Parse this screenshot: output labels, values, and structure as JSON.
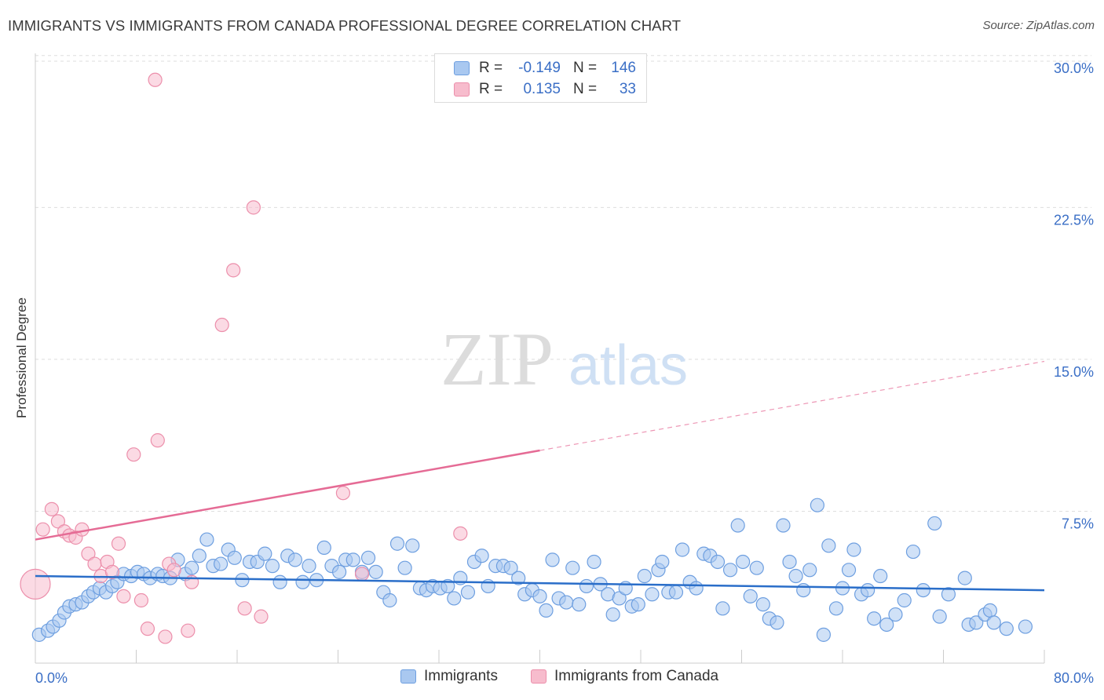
{
  "title": "IMMIGRANTS VS IMMIGRANTS FROM CANADA PROFESSIONAL DEGREE CORRELATION CHART",
  "source": "Source: ZipAtlas.com",
  "watermark": {
    "zip": "ZIP",
    "atlas": "atlas"
  },
  "legend": {
    "r_label": "R =",
    "n_label": "N =",
    "rows": [
      {
        "r": "-0.149",
        "n": "146"
      },
      {
        "r": "0.135",
        "n": "33"
      }
    ]
  },
  "chart_data": {
    "type": "scatter",
    "title": "IMMIGRANTS VS IMMIGRANTS FROM CANADA PROFESSIONAL DEGREE CORRELATION CHART",
    "xlabel": "",
    "ylabel": "Professional Degree",
    "xlim": [
      0,
      80
    ],
    "ylim": [
      0,
      31
    ],
    "x_tick_labels": [
      "0.0%",
      "80.0%"
    ],
    "y_ticks": [
      7.5,
      15.0,
      22.5,
      30.0
    ],
    "y_tick_labels": [
      "7.5%",
      "15.0%",
      "22.5%",
      "30.0%"
    ],
    "grid": "horizontal dashed",
    "legend_placement": "top-center",
    "colors": {
      "immigrants_fill": "#a9c8f0",
      "immigrants_edge": "#6e9fe0",
      "immigrants_line": "#2a6ec9",
      "canada_fill": "#f7bccd",
      "canada_edge": "#ec8fab",
      "canada_line": "#e56b95",
      "tick_label": "#3b6fc6"
    },
    "series": [
      {
        "name": "Immigrants",
        "r": -0.149,
        "n": 146,
        "trend": {
          "x": [
            0,
            80
          ],
          "y": [
            4.3,
            3.6
          ]
        },
        "points": [
          [
            0.3,
            1.4
          ],
          [
            1.0,
            1.6
          ],
          [
            1.4,
            1.8
          ],
          [
            1.9,
            2.1
          ],
          [
            2.3,
            2.5
          ],
          [
            2.7,
            2.8
          ],
          [
            3.2,
            2.9
          ],
          [
            3.7,
            3.0
          ],
          [
            4.2,
            3.3
          ],
          [
            4.6,
            3.5
          ],
          [
            5.1,
            3.7
          ],
          [
            5.6,
            3.5
          ],
          [
            6.1,
            3.8
          ],
          [
            6.5,
            4.0
          ],
          [
            7.0,
            4.4
          ],
          [
            7.6,
            4.3
          ],
          [
            8.1,
            4.5
          ],
          [
            8.6,
            4.4
          ],
          [
            9.1,
            4.2
          ],
          [
            9.7,
            4.4
          ],
          [
            10.1,
            4.3
          ],
          [
            10.7,
            4.2
          ],
          [
            11.3,
            5.1
          ],
          [
            11.9,
            4.4
          ],
          [
            12.4,
            4.7
          ],
          [
            13.0,
            5.3
          ],
          [
            13.6,
            6.1
          ],
          [
            14.1,
            4.8
          ],
          [
            14.7,
            4.9
          ],
          [
            15.3,
            5.6
          ],
          [
            15.8,
            5.2
          ],
          [
            16.4,
            4.1
          ],
          [
            17.0,
            5.0
          ],
          [
            17.6,
            5.0
          ],
          [
            18.2,
            5.4
          ],
          [
            18.8,
            4.8
          ],
          [
            19.4,
            4.0
          ],
          [
            20.0,
            5.3
          ],
          [
            20.6,
            5.1
          ],
          [
            21.2,
            4.0
          ],
          [
            21.7,
            4.8
          ],
          [
            22.3,
            4.1
          ],
          [
            22.9,
            5.7
          ],
          [
            23.5,
            4.8
          ],
          [
            24.1,
            4.5
          ],
          [
            24.6,
            5.1
          ],
          [
            25.2,
            5.1
          ],
          [
            25.9,
            4.5
          ],
          [
            26.4,
            5.2
          ],
          [
            27.0,
            4.5
          ],
          [
            27.6,
            3.5
          ],
          [
            28.1,
            3.1
          ],
          [
            28.7,
            5.9
          ],
          [
            29.3,
            4.7
          ],
          [
            29.9,
            5.8
          ],
          [
            30.5,
            3.7
          ],
          [
            31.0,
            3.6
          ],
          [
            31.5,
            3.8
          ],
          [
            32.1,
            3.7
          ],
          [
            32.7,
            3.8
          ],
          [
            33.2,
            3.2
          ],
          [
            33.7,
            4.2
          ],
          [
            34.3,
            3.5
          ],
          [
            34.8,
            5.0
          ],
          [
            35.4,
            5.3
          ],
          [
            35.9,
            3.8
          ],
          [
            36.5,
            4.8
          ],
          [
            37.1,
            4.8
          ],
          [
            37.7,
            4.7
          ],
          [
            38.3,
            4.2
          ],
          [
            38.8,
            3.4
          ],
          [
            39.4,
            3.6
          ],
          [
            40.0,
            3.3
          ],
          [
            40.5,
            2.6
          ],
          [
            41.0,
            5.1
          ],
          [
            41.5,
            3.2
          ],
          [
            42.1,
            3.0
          ],
          [
            42.6,
            4.7
          ],
          [
            43.1,
            2.9
          ],
          [
            43.7,
            3.8
          ],
          [
            44.3,
            5.0
          ],
          [
            44.8,
            3.9
          ],
          [
            45.4,
            3.4
          ],
          [
            45.8,
            2.4
          ],
          [
            46.3,
            3.2
          ],
          [
            46.8,
            3.7
          ],
          [
            47.3,
            2.8
          ],
          [
            47.8,
            2.9
          ],
          [
            48.3,
            4.3
          ],
          [
            48.9,
            3.4
          ],
          [
            49.4,
            4.6
          ],
          [
            49.7,
            5.0
          ],
          [
            50.2,
            3.5
          ],
          [
            50.8,
            3.5
          ],
          [
            51.3,
            5.6
          ],
          [
            51.9,
            4.0
          ],
          [
            52.4,
            3.7
          ],
          [
            53.0,
            5.4
          ],
          [
            53.5,
            5.3
          ],
          [
            54.1,
            5.0
          ],
          [
            54.5,
            2.7
          ],
          [
            55.1,
            4.6
          ],
          [
            55.7,
            6.8
          ],
          [
            56.1,
            5.0
          ],
          [
            56.7,
            3.3
          ],
          [
            57.2,
            4.7
          ],
          [
            57.7,
            2.9
          ],
          [
            58.2,
            2.2
          ],
          [
            58.8,
            2.0
          ],
          [
            59.3,
            6.8
          ],
          [
            59.8,
            5.0
          ],
          [
            60.3,
            4.3
          ],
          [
            60.9,
            3.6
          ],
          [
            61.4,
            4.6
          ],
          [
            62.0,
            7.8
          ],
          [
            62.5,
            1.4
          ],
          [
            62.9,
            5.8
          ],
          [
            63.5,
            2.7
          ],
          [
            64.0,
            3.7
          ],
          [
            64.5,
            4.6
          ],
          [
            64.9,
            5.6
          ],
          [
            65.5,
            3.4
          ],
          [
            66.0,
            3.6
          ],
          [
            66.5,
            2.2
          ],
          [
            67.0,
            4.3
          ],
          [
            67.5,
            1.9
          ],
          [
            68.2,
            2.4
          ],
          [
            68.9,
            3.1
          ],
          [
            69.6,
            5.5
          ],
          [
            70.4,
            3.6
          ],
          [
            71.3,
            6.9
          ],
          [
            71.7,
            2.3
          ],
          [
            72.4,
            3.4
          ],
          [
            73.7,
            4.2
          ],
          [
            74.0,
            1.9
          ],
          [
            74.6,
            2.0
          ],
          [
            75.3,
            2.4
          ],
          [
            75.7,
            2.6
          ],
          [
            76.0,
            2.0
          ],
          [
            77.0,
            1.7
          ],
          [
            78.5,
            1.8
          ]
        ]
      },
      {
        "name": "Immigrants from Canada",
        "r": 0.135,
        "n": 33,
        "trend": {
          "x": [
            0,
            80
          ],
          "y": [
            6.1,
            14.9
          ]
        },
        "points": [
          [
            0.0,
            3.9
          ],
          [
            0.6,
            6.6
          ],
          [
            1.3,
            7.6
          ],
          [
            1.8,
            7.0
          ],
          [
            2.3,
            6.5
          ],
          [
            2.7,
            6.3
          ],
          [
            3.2,
            6.2
          ],
          [
            3.7,
            6.6
          ],
          [
            4.2,
            5.4
          ],
          [
            4.7,
            4.9
          ],
          [
            5.2,
            4.3
          ],
          [
            5.7,
            5.0
          ],
          [
            6.1,
            4.5
          ],
          [
            6.6,
            5.9
          ],
          [
            7.0,
            3.3
          ],
          [
            7.8,
            10.3
          ],
          [
            8.4,
            3.1
          ],
          [
            8.9,
            1.7
          ],
          [
            9.5,
            28.8
          ],
          [
            9.7,
            11.0
          ],
          [
            10.3,
            1.3
          ],
          [
            10.6,
            4.9
          ],
          [
            11.0,
            4.6
          ],
          [
            12.1,
            1.6
          ],
          [
            12.4,
            4.0
          ],
          [
            14.8,
            16.7
          ],
          [
            15.7,
            19.4
          ],
          [
            16.6,
            2.7
          ],
          [
            17.3,
            22.5
          ],
          [
            17.9,
            2.3
          ],
          [
            24.4,
            8.4
          ],
          [
            25.9,
            4.4
          ],
          [
            33.7,
            6.4
          ]
        ]
      }
    ]
  },
  "bottom_legend": [
    {
      "label": "Immigrants"
    },
    {
      "label": "Immigrants from Canada"
    }
  ]
}
